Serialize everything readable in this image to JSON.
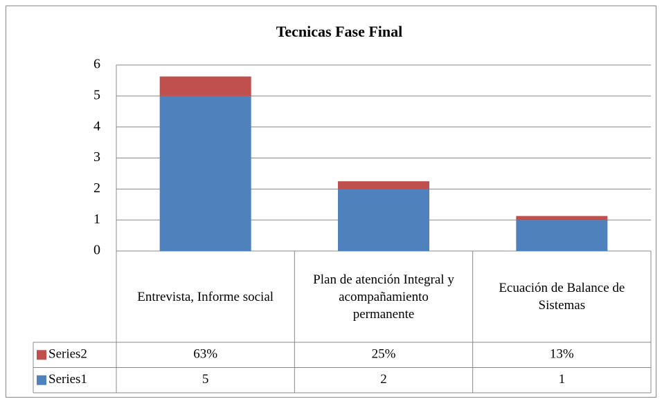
{
  "chart_data": {
    "type": "stacked_bar",
    "title": "Tecnicas Fase Final",
    "categories": [
      "Entrevista, Informe social",
      "Plan de atención Integral  y acompañamiento permanente",
      "Ecuación de Balance de Sistemas"
    ],
    "series": [
      {
        "name": "Series1",
        "color": "#4f81bd",
        "values": [
          5,
          2,
          1
        ]
      },
      {
        "name": "Series2",
        "color": "#c0504d",
        "values": [
          0.63,
          0.25,
          0.13
        ],
        "value_labels": [
          "63%",
          "25%",
          "13%"
        ]
      }
    ],
    "ylim": [
      0,
      6
    ],
    "yticks": [
      0,
      1,
      2,
      3,
      4,
      5,
      6
    ],
    "grid": true,
    "legend": "data-table"
  }
}
